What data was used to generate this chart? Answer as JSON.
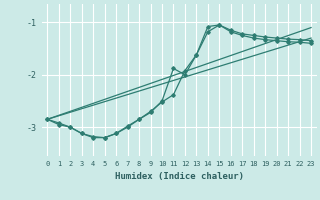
{
  "title": "",
  "xlabel": "Humidex (Indice chaleur)",
  "ylabel": "",
  "bg_color": "#cceae7",
  "line_color": "#2e7d72",
  "grid_color": "#ffffff",
  "xlim": [
    -0.5,
    23.5
  ],
  "ylim": [
    -3.55,
    -0.65
  ],
  "yticks": [
    -3,
    -2,
    -1
  ],
  "xticks": [
    0,
    1,
    2,
    3,
    4,
    5,
    6,
    7,
    8,
    9,
    10,
    11,
    12,
    13,
    14,
    15,
    16,
    17,
    18,
    19,
    20,
    21,
    22,
    23
  ],
  "line1_x": [
    0,
    1,
    2,
    3,
    4,
    5,
    6,
    7,
    8,
    9,
    10,
    11,
    12,
    13,
    14,
    15,
    16,
    17,
    18,
    19,
    20,
    21,
    22,
    23
  ],
  "line1_y": [
    -2.85,
    -2.95,
    -3.0,
    -3.12,
    -3.18,
    -3.2,
    -3.12,
    -2.98,
    -2.85,
    -2.72,
    -2.5,
    -1.88,
    -2.0,
    -1.62,
    -1.08,
    -1.05,
    -1.15,
    -1.22,
    -1.25,
    -1.28,
    -1.3,
    -1.32,
    -1.33,
    -1.35
  ],
  "line2_x": [
    0,
    1,
    2,
    3,
    4,
    5,
    6,
    7,
    8,
    9,
    10,
    11,
    12,
    13,
    14,
    15,
    16,
    17,
    18,
    19,
    20,
    21,
    22,
    23
  ],
  "line2_y": [
    -2.85,
    -2.92,
    -3.0,
    -3.12,
    -3.2,
    -3.2,
    -3.12,
    -3.0,
    -2.85,
    -2.7,
    -2.52,
    -2.38,
    -1.92,
    -1.62,
    -1.18,
    -1.05,
    -1.18,
    -1.25,
    -1.3,
    -1.33,
    -1.35,
    -1.37,
    -1.38,
    -1.4
  ],
  "line3_x": [
    0,
    23
  ],
  "line3_y": [
    -2.85,
    -1.1
  ],
  "line4_x": [
    0,
    23
  ],
  "line4_y": [
    -2.85,
    -1.3
  ]
}
